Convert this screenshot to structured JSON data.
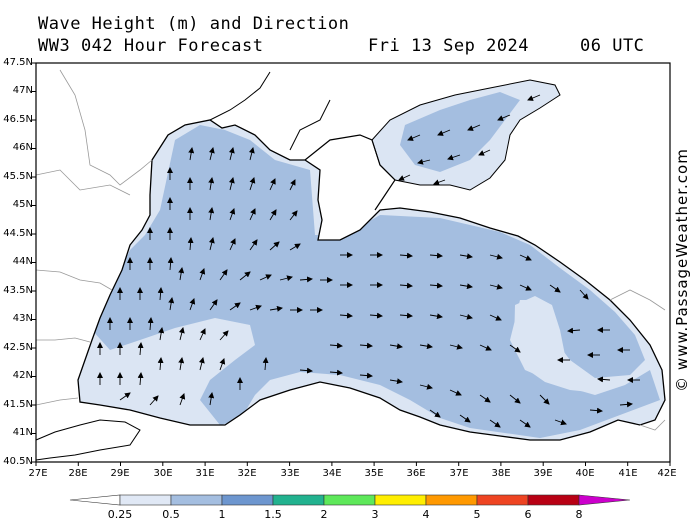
{
  "title": {
    "line1": "Wave Height (m) and Direction",
    "model": "WW3 042 Hour Forecast",
    "date": "Fri 13 Sep 2024",
    "time": "06 UTC"
  },
  "credit": "© www.PassageWeather.com",
  "map": {
    "region": "Black Sea",
    "lat_labels": [
      "47.5N",
      "47N",
      "46.5N",
      "46N",
      "45.5N",
      "45N",
      "44.5N",
      "44N",
      "43.5N",
      "43N",
      "42.5N",
      "42N",
      "41.5N",
      "41N",
      "40.5N"
    ],
    "lon_labels": [
      "27E",
      "28E",
      "29E",
      "30E",
      "31E",
      "32E",
      "33E",
      "34E",
      "35E",
      "36E",
      "37E",
      "38E",
      "39E",
      "40E",
      "41E",
      "42E"
    ],
    "colors": {
      "land": "#ffffff",
      "coast": "#000000",
      "border": "#999999",
      "band_0_25_0_5": "#dbe5f3",
      "band_0_5_1": "#a4bee0"
    },
    "wave_direction_summary": "westerly in east, northerly in west"
  },
  "colorbar": {
    "labels": [
      "0.25",
      "0.5",
      "1",
      "1.5",
      "2",
      "3",
      "4",
      "5",
      "6",
      "8"
    ],
    "colors": [
      "#e0e8f5",
      "#a4bee0",
      "#6d96cf",
      "#22b28f",
      "#5ee85a",
      "#ffee00",
      "#ff9900",
      "#ee4422",
      "#b80014",
      "#cc00cc"
    ]
  }
}
